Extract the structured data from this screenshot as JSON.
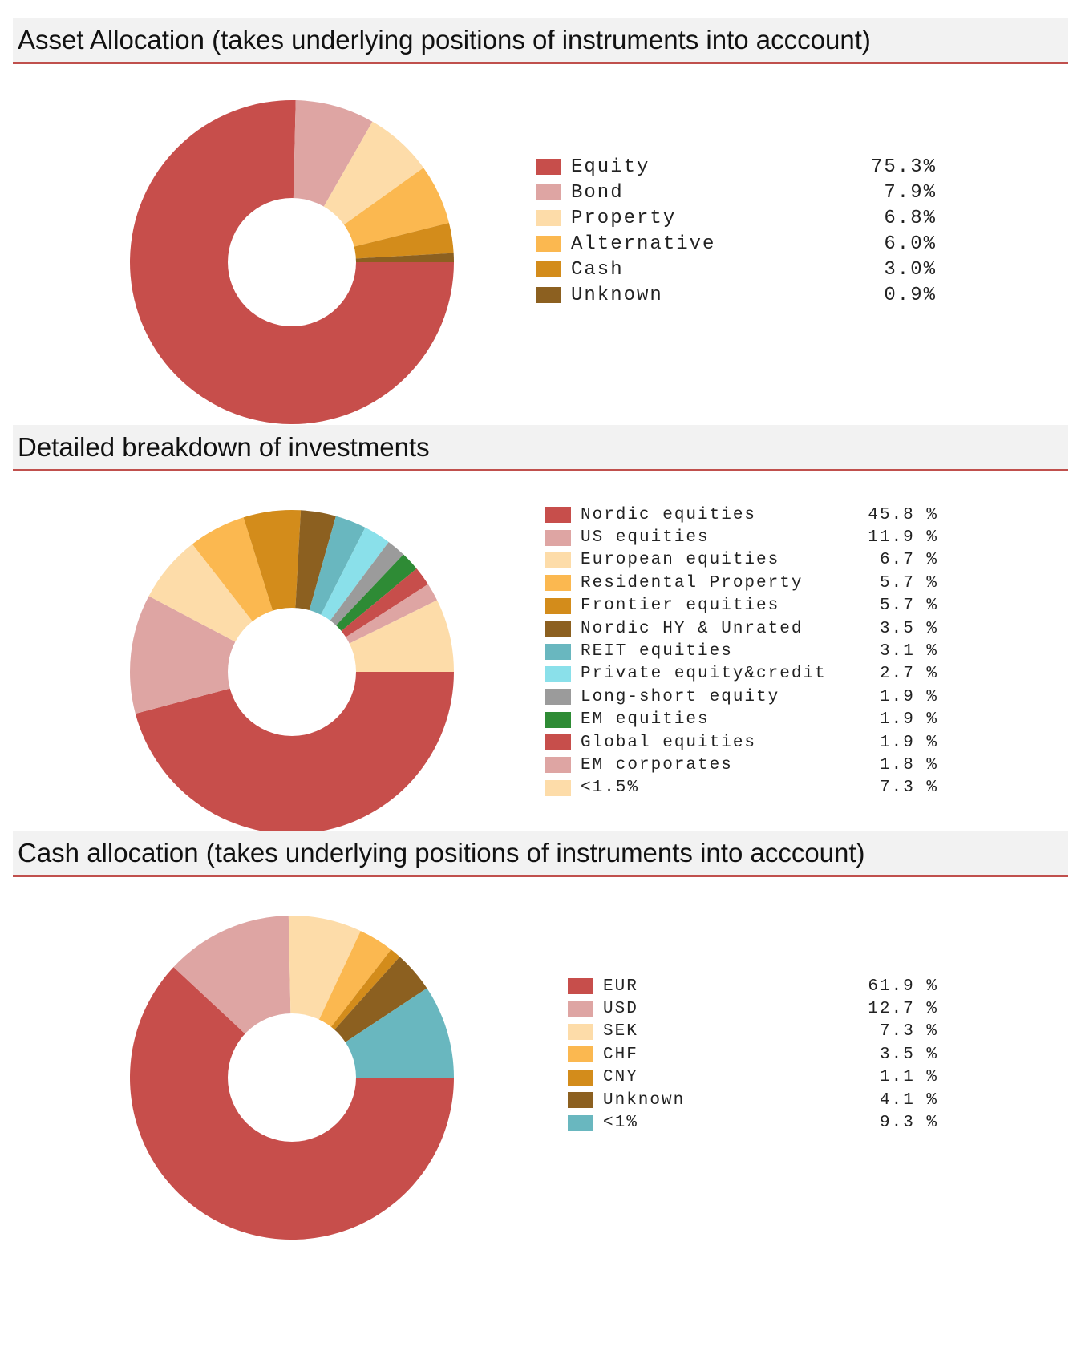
{
  "colors": {
    "accent_rule": "#c0504d",
    "header_bg": "#f2f2f2"
  },
  "sections": [
    {
      "title": "Asset Allocation (takes underlying positions of instruments into acccount)",
      "chart_data": {
        "type": "pie",
        "donut": true,
        "legend_position": "right",
        "categories": [
          "Equity",
          "Bond",
          "Property",
          "Alternative",
          "Cash",
          "Unknown"
        ],
        "values": [
          75.3,
          7.9,
          6.8,
          6.0,
          3.0,
          0.9
        ],
        "value_labels": [
          "75.3%",
          "7.9%",
          "6.8%",
          "6.0%",
          "3.0%",
          "0.9%"
        ],
        "colors": [
          "#c74e4b",
          "#dea5a3",
          "#fddca9",
          "#fbb850",
          "#d38c1b",
          "#8c6020"
        ]
      }
    },
    {
      "title": "Detailed breakdown of investments",
      "chart_data": {
        "type": "pie",
        "donut": true,
        "legend_position": "right",
        "categories": [
          "Nordic equities",
          "US equities",
          "European equities",
          "Residental Property",
          "Frontier equities",
          "Nordic HY & Unrated",
          "REIT equities",
          "Private equity&credit",
          "Long-short equity",
          "EM equities",
          "Global equities",
          "EM corporates",
          "<1.5%"
        ],
        "values": [
          45.8,
          11.9,
          6.7,
          5.7,
          5.7,
          3.5,
          3.1,
          2.7,
          1.9,
          1.9,
          1.9,
          1.8,
          7.3
        ],
        "value_labels": [
          "45.8 %",
          "11.9 %",
          "6.7 %",
          "5.7 %",
          "5.7 %",
          "3.5 %",
          "3.1 %",
          "2.7 %",
          "1.9 %",
          "1.9 %",
          "1.9 %",
          "1.8 %",
          "7.3 %"
        ],
        "colors": [
          "#c74e4b",
          "#dea5a3",
          "#fddca9",
          "#fbb850",
          "#d38c1b",
          "#8c6020",
          "#69b7bf",
          "#8ae0ea",
          "#9b9b9b",
          "#2e8b35",
          "#c74e4b",
          "#dea5a3",
          "#fddca9"
        ]
      }
    },
    {
      "title": "Cash allocation (takes underlying positions of instruments into acccount)",
      "chart_data": {
        "type": "pie",
        "donut": true,
        "legend_position": "right",
        "categories": [
          "EUR",
          "USD",
          "SEK",
          "CHF",
          "CNY",
          "Unknown",
          "<1%"
        ],
        "values": [
          61.9,
          12.7,
          7.3,
          3.5,
          1.1,
          4.1,
          9.3
        ],
        "value_labels": [
          "61.9 %",
          "12.7 %",
          "7.3 %",
          "3.5 %",
          "1.1 %",
          "4.1 %",
          "9.3 %"
        ],
        "colors": [
          "#c74e4b",
          "#dea5a3",
          "#fddca9",
          "#fbb850",
          "#d38c1b",
          "#8c6020",
          "#69b7bf"
        ]
      }
    }
  ]
}
